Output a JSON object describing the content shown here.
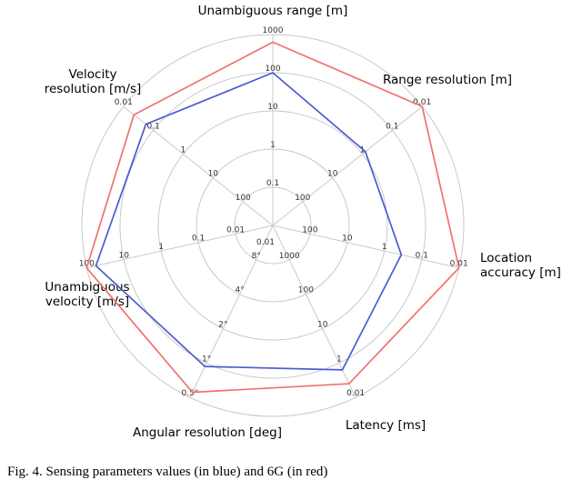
{
  "figure": {
    "caption": "Fig. 4.  Sensing parameters values (in blue) and 6G (in red)"
  },
  "chart_data": {
    "type": "radar",
    "title": "",
    "rings": 5,
    "grid": "circular light-gray rings with radial spokes, no fill on polygons",
    "legend": "none (series identified in caption: blue = sensing parameter values, red = 6G)",
    "colors": {
      "grid": "#c9c9c9",
      "axis_text": "#111111",
      "blue_series": "#4a5cd0",
      "red_series": "#f0716e"
    },
    "axes": [
      {
        "label": "Unambiguous range [m]",
        "label_lines": [
          "Unambiguous range [m]"
        ],
        "ticks": [
          "0.1",
          "1",
          "10",
          "100",
          "1000"
        ],
        "center_tick": "0.01",
        "scale": "log, improves outward (0.01 center to 1000 outer)"
      },
      {
        "label": "Range resolution [m]",
        "label_lines": [
          "Range resolution [m]"
        ],
        "ticks": [
          "100",
          "10",
          "1",
          "0.1",
          "0.01"
        ],
        "scale": "log, improves outward"
      },
      {
        "label": "Location accuracy [m]",
        "label_lines": [
          "Location",
          "accuracy [m]"
        ],
        "ticks": [
          "100",
          "10",
          "1",
          "0.1",
          "0.01"
        ],
        "scale": "log, improves outward"
      },
      {
        "label": "Latency [ms]",
        "label_lines": [
          "Latency [ms]"
        ],
        "ticks": [
          "1000",
          "100",
          "10",
          "1",
          "0.01"
        ],
        "scale": "log, improves outward"
      },
      {
        "label": "Angular resolution [deg]",
        "label_lines": [
          "Angular resolution [deg]"
        ],
        "ticks": [
          "8°",
          "4°",
          "2°",
          "1°",
          "0.5°"
        ],
        "scale": "factor-2, improves outward"
      },
      {
        "label": "Unambiguous velocity [m/s]",
        "label_lines": [
          "Unambiguous",
          "velocity [m/s]"
        ],
        "ticks": [
          "0.01",
          "0.1",
          "1",
          "10",
          "100"
        ],
        "scale": "log, improves outward"
      },
      {
        "label": "Velocity resolution [m/s]",
        "label_lines": [
          "Velocity",
          "resolution [m/s]"
        ],
        "ticks": [
          "100",
          "10",
          "1",
          "0.1",
          "0.01"
        ],
        "scale": "log, improves outward"
      }
    ],
    "series": [
      {
        "name": "sensing values (blue)",
        "color": "#4a5cd0",
        "radial_fractions": [
          0.8,
          0.62,
          0.69,
          0.84,
          0.82,
          0.95,
          0.85
        ],
        "approx_values": [
          "~100 m",
          "~0.6 m",
          "~0.4 m",
          "~1 ms",
          "~1°",
          "~80 m/s",
          "~0.05 m/s"
        ]
      },
      {
        "name": "6G (red)",
        "color": "#f0716e",
        "radial_fractions": [
          0.96,
          1.0,
          1.0,
          0.92,
          0.97,
          1.0,
          0.93
        ],
        "approx_values": [
          "~800 m",
          "0.01 m",
          "0.01 m",
          "~0.5 ms",
          "0.5°",
          "100 m/s",
          "~0.02 m/s"
        ]
      }
    ]
  }
}
